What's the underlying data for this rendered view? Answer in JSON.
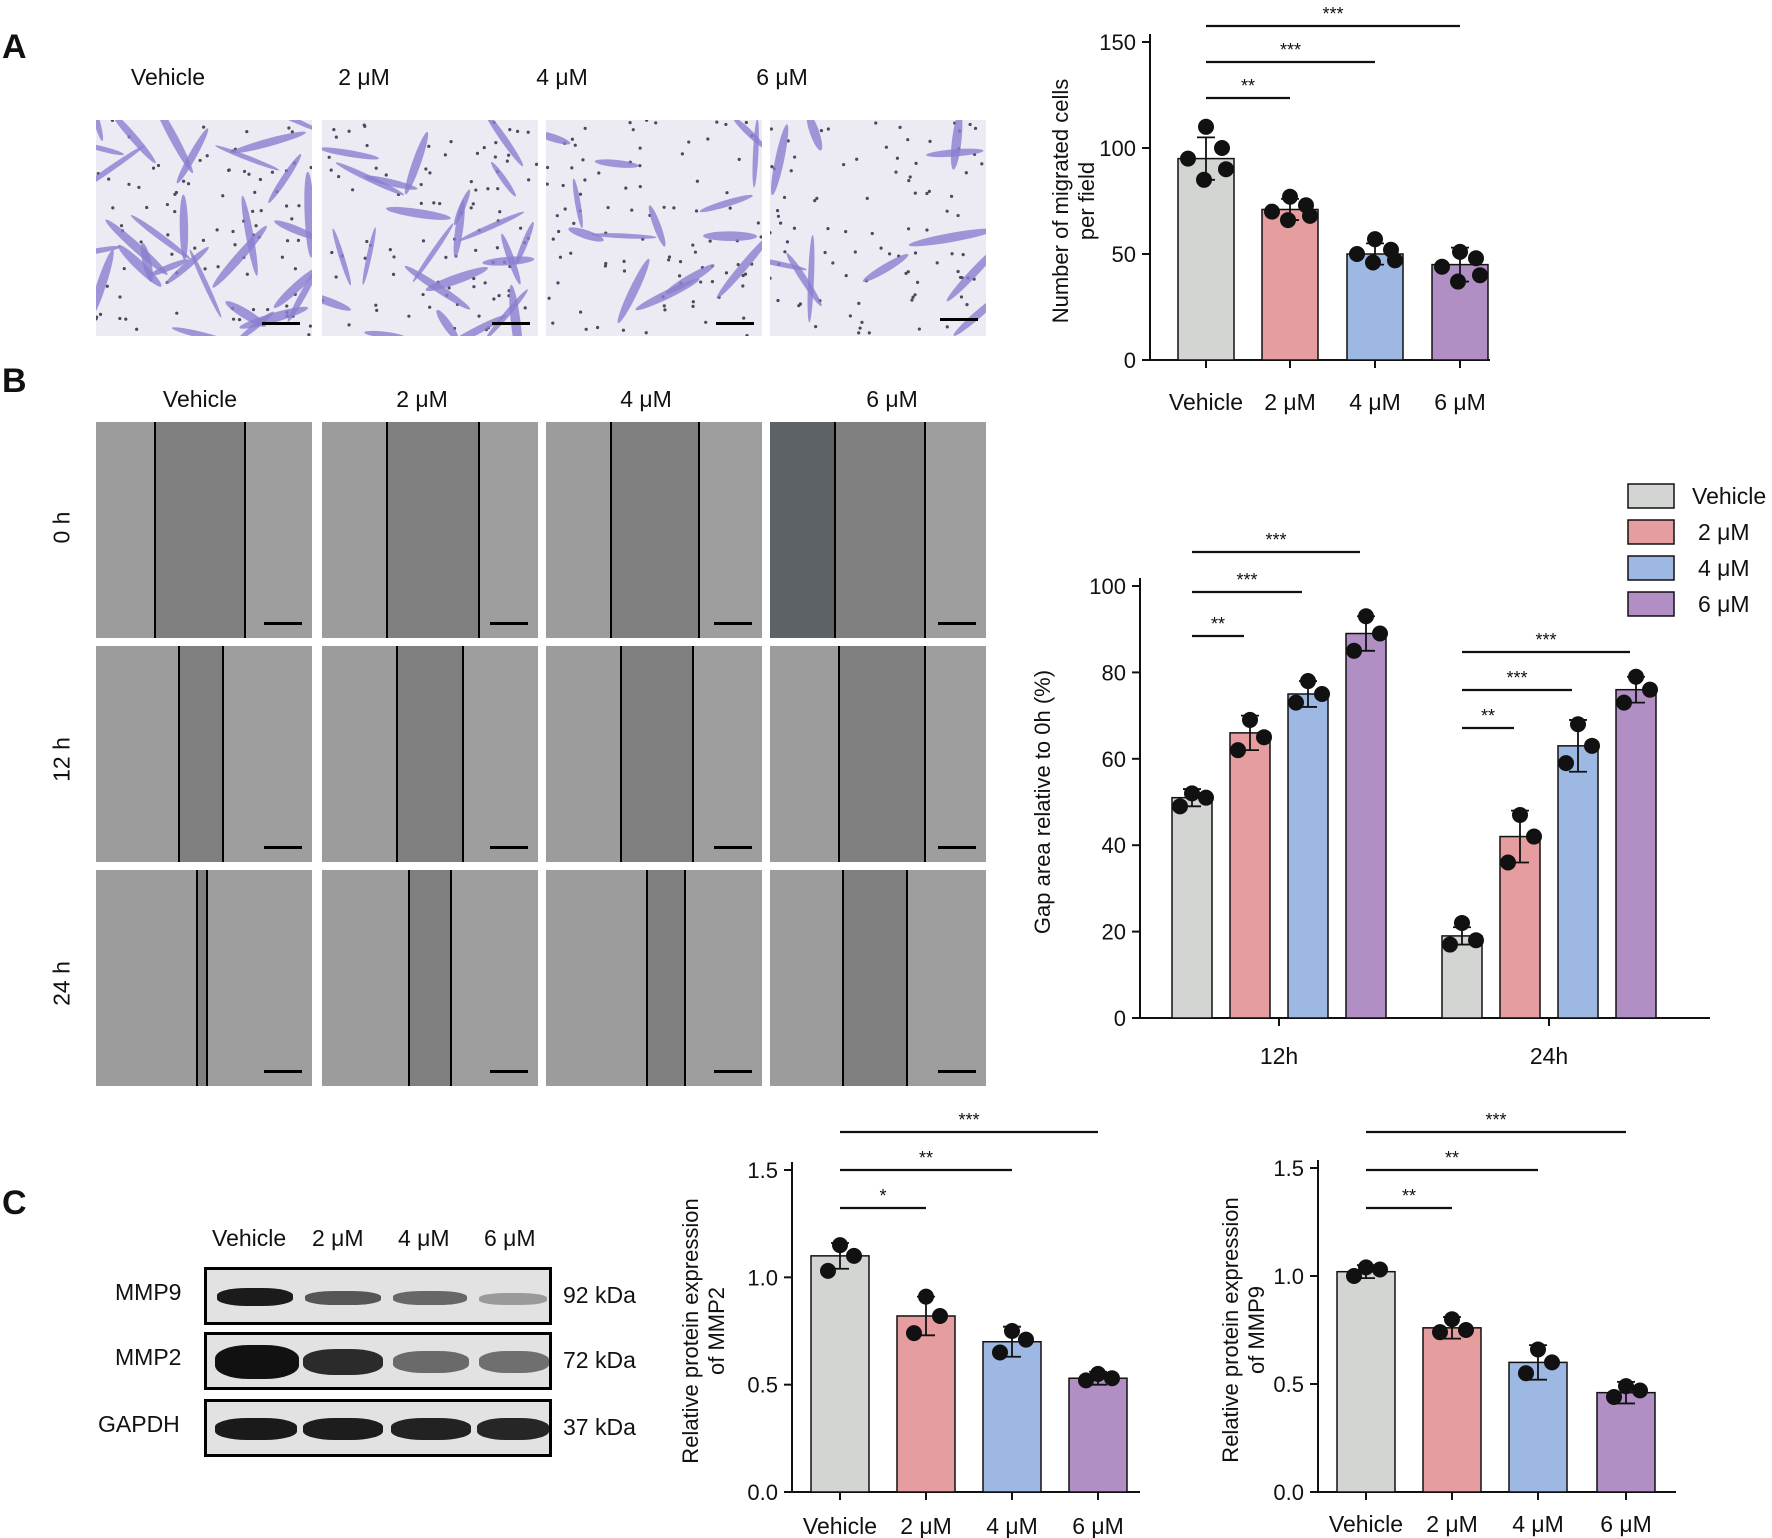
{
  "panel_a": {
    "letter": "A",
    "groups": [
      "Vehicle",
      "2 μM",
      "4 μM",
      "6 μM"
    ]
  },
  "panel_b": {
    "letter": "B",
    "groups": [
      "Vehicle",
      "2 μM",
      "4 μM",
      "6 μM"
    ],
    "time_points": [
      "0 h",
      "12 h",
      "24 h"
    ]
  },
  "panel_c": {
    "letter": "C",
    "groups": [
      "Vehicle",
      "2 μM",
      "4 μM",
      "6 μM"
    ],
    "proteins": [
      "MMP9",
      "MMP2",
      "GAPDH"
    ],
    "sizes": [
      "92 kDa",
      "72 kDa",
      "37 kDa"
    ]
  },
  "colors": {
    "vehicle": "#d3d5d3",
    "dose2": "#e59da0",
    "dose4": "#9db8e3",
    "dose6": "#b18ec4"
  },
  "chart_data": [
    {
      "id": "migration",
      "type": "bar",
      "categories": [
        "Vehicle",
        "2 μM",
        "4 μM",
        "6 μM"
      ],
      "values": [
        95,
        71,
        50,
        45
      ],
      "errors": [
        10,
        5,
        5,
        8
      ],
      "points": [
        [
          110,
          100,
          95,
          90,
          85
        ],
        [
          77,
          73,
          70,
          68,
          66
        ],
        [
          57,
          52,
          50,
          47,
          46
        ],
        [
          51,
          48,
          44,
          40,
          37
        ]
      ],
      "title": "",
      "xlabel": "",
      "ylabel": "Number of migrated cells per field",
      "ylim": [
        0,
        150
      ],
      "yticks": [
        0,
        50,
        100,
        150
      ],
      "significance": [
        {
          "from": 0,
          "to": 1,
          "label": "**"
        },
        {
          "from": 0,
          "to": 2,
          "label": "***"
        },
        {
          "from": 0,
          "to": 3,
          "label": "***"
        }
      ]
    },
    {
      "id": "gap-area",
      "type": "bar",
      "categories": [
        "12h",
        "24h"
      ],
      "series": [
        {
          "name": "Vehicle",
          "values": [
            51,
            19
          ],
          "errors": [
            2,
            2
          ],
          "points": [
            [
              52,
              51,
              49
            ],
            [
              22,
              18,
              17
            ]
          ]
        },
        {
          "name": "2 μM",
          "values": [
            66,
            42
          ],
          "errors": [
            4,
            6
          ],
          "points": [
            [
              69,
              65,
              62
            ],
            [
              47,
              42,
              36
            ]
          ]
        },
        {
          "name": "4 μM",
          "values": [
            75,
            63
          ],
          "errors": [
            3,
            6
          ],
          "points": [
            [
              78,
              75,
              73
            ],
            [
              68,
              63,
              59
            ]
          ]
        },
        {
          "name": "6 μM",
          "values": [
            89,
            76
          ],
          "errors": [
            4,
            3
          ],
          "points": [
            [
              93,
              89,
              85
            ],
            [
              79,
              76,
              73
            ]
          ]
        }
      ],
      "title": "",
      "xlabel": "",
      "ylabel": "Gap area relative to 0h (%)",
      "ylim": [
        0,
        100
      ],
      "yticks": [
        0,
        20,
        40,
        60,
        80,
        100
      ],
      "legend_position": "top-right",
      "significance": [
        {
          "group": 0,
          "from": 0,
          "to": 1,
          "label": "**"
        },
        {
          "group": 0,
          "from": 0,
          "to": 2,
          "label": "***"
        },
        {
          "group": 0,
          "from": 0,
          "to": 3,
          "label": "***"
        },
        {
          "group": 1,
          "from": 0,
          "to": 1,
          "label": "**"
        },
        {
          "group": 1,
          "from": 0,
          "to": 2,
          "label": "***"
        },
        {
          "group": 1,
          "from": 0,
          "to": 3,
          "label": "***"
        }
      ]
    },
    {
      "id": "mmp2",
      "type": "bar",
      "categories": [
        "Vehicle",
        "2 μM",
        "4 μM",
        "6 μM"
      ],
      "values": [
        1.1,
        0.82,
        0.7,
        0.53
      ],
      "errors": [
        0.06,
        0.09,
        0.07,
        0.03
      ],
      "points": [
        [
          1.15,
          1.1,
          1.03
        ],
        [
          0.91,
          0.82,
          0.74
        ],
        [
          0.75,
          0.71,
          0.65
        ],
        [
          0.55,
          0.53,
          0.52
        ]
      ],
      "title": "",
      "xlabel": "",
      "ylabel": "Relative protein expression of MMP2",
      "ylim": [
        0,
        1.5
      ],
      "yticks": [
        0.0,
        0.5,
        1.0,
        1.5
      ],
      "significance": [
        {
          "from": 0,
          "to": 1,
          "label": "*"
        },
        {
          "from": 0,
          "to": 2,
          "label": "**"
        },
        {
          "from": 0,
          "to": 3,
          "label": "***"
        }
      ]
    },
    {
      "id": "mmp9",
      "type": "bar",
      "categories": [
        "Vehicle",
        "2 μM",
        "4 μM",
        "6 μM"
      ],
      "values": [
        1.02,
        0.76,
        0.6,
        0.46
      ],
      "errors": [
        0.03,
        0.05,
        0.08,
        0.05
      ],
      "points": [
        [
          1.04,
          1.03,
          1.0
        ],
        [
          0.8,
          0.75,
          0.74
        ],
        [
          0.66,
          0.6,
          0.55
        ],
        [
          0.49,
          0.47,
          0.44
        ]
      ],
      "title": "",
      "xlabel": "",
      "ylabel": "Relative protein expression of MMP9",
      "ylim": [
        0,
        1.5
      ],
      "yticks": [
        0.0,
        0.5,
        1.0,
        1.5
      ],
      "significance": [
        {
          "from": 0,
          "to": 1,
          "label": "**"
        },
        {
          "from": 0,
          "to": 2,
          "label": "**"
        },
        {
          "from": 0,
          "to": 3,
          "label": "***"
        }
      ]
    }
  ]
}
